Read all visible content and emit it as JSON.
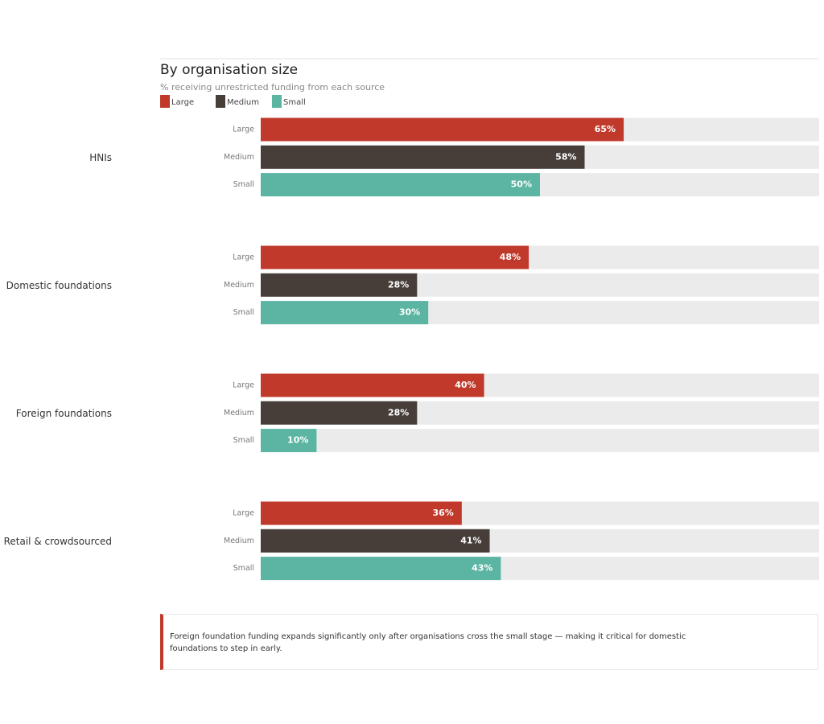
{
  "chart_data": {
    "type": "grouped-barh",
    "title": "By organisation size",
    "subtitle": "% receiving unrestricted funding from each source",
    "categories": [
      "HNIs",
      "Domestic foundations",
      "Foreign foundations",
      "Retail & crowdsourced"
    ],
    "series": [
      {
        "name": "Large",
        "color": "#c0392b",
        "values": [
          65,
          48,
          40,
          36
        ],
        "value_labels": [
          "65%",
          "48%",
          "40%",
          "36%"
        ]
      },
      {
        "name": "Medium",
        "color": "#473e39",
        "values": [
          58,
          28,
          28,
          41
        ],
        "value_labels": [
          "58%",
          "28%",
          "28%",
          "41%"
        ]
      },
      {
        "name": "Small",
        "color": "#5bb5a2",
        "values": [
          50,
          30,
          10,
          43
        ],
        "value_labels": [
          "50%",
          "30%",
          "10%",
          "43%"
        ]
      }
    ],
    "xlim": [
      0,
      100
    ],
    "annotation": "Foreign foundation funding expands significantly only after organisations cross the small stage — making it critical for domestic foundations to step in early."
  }
}
